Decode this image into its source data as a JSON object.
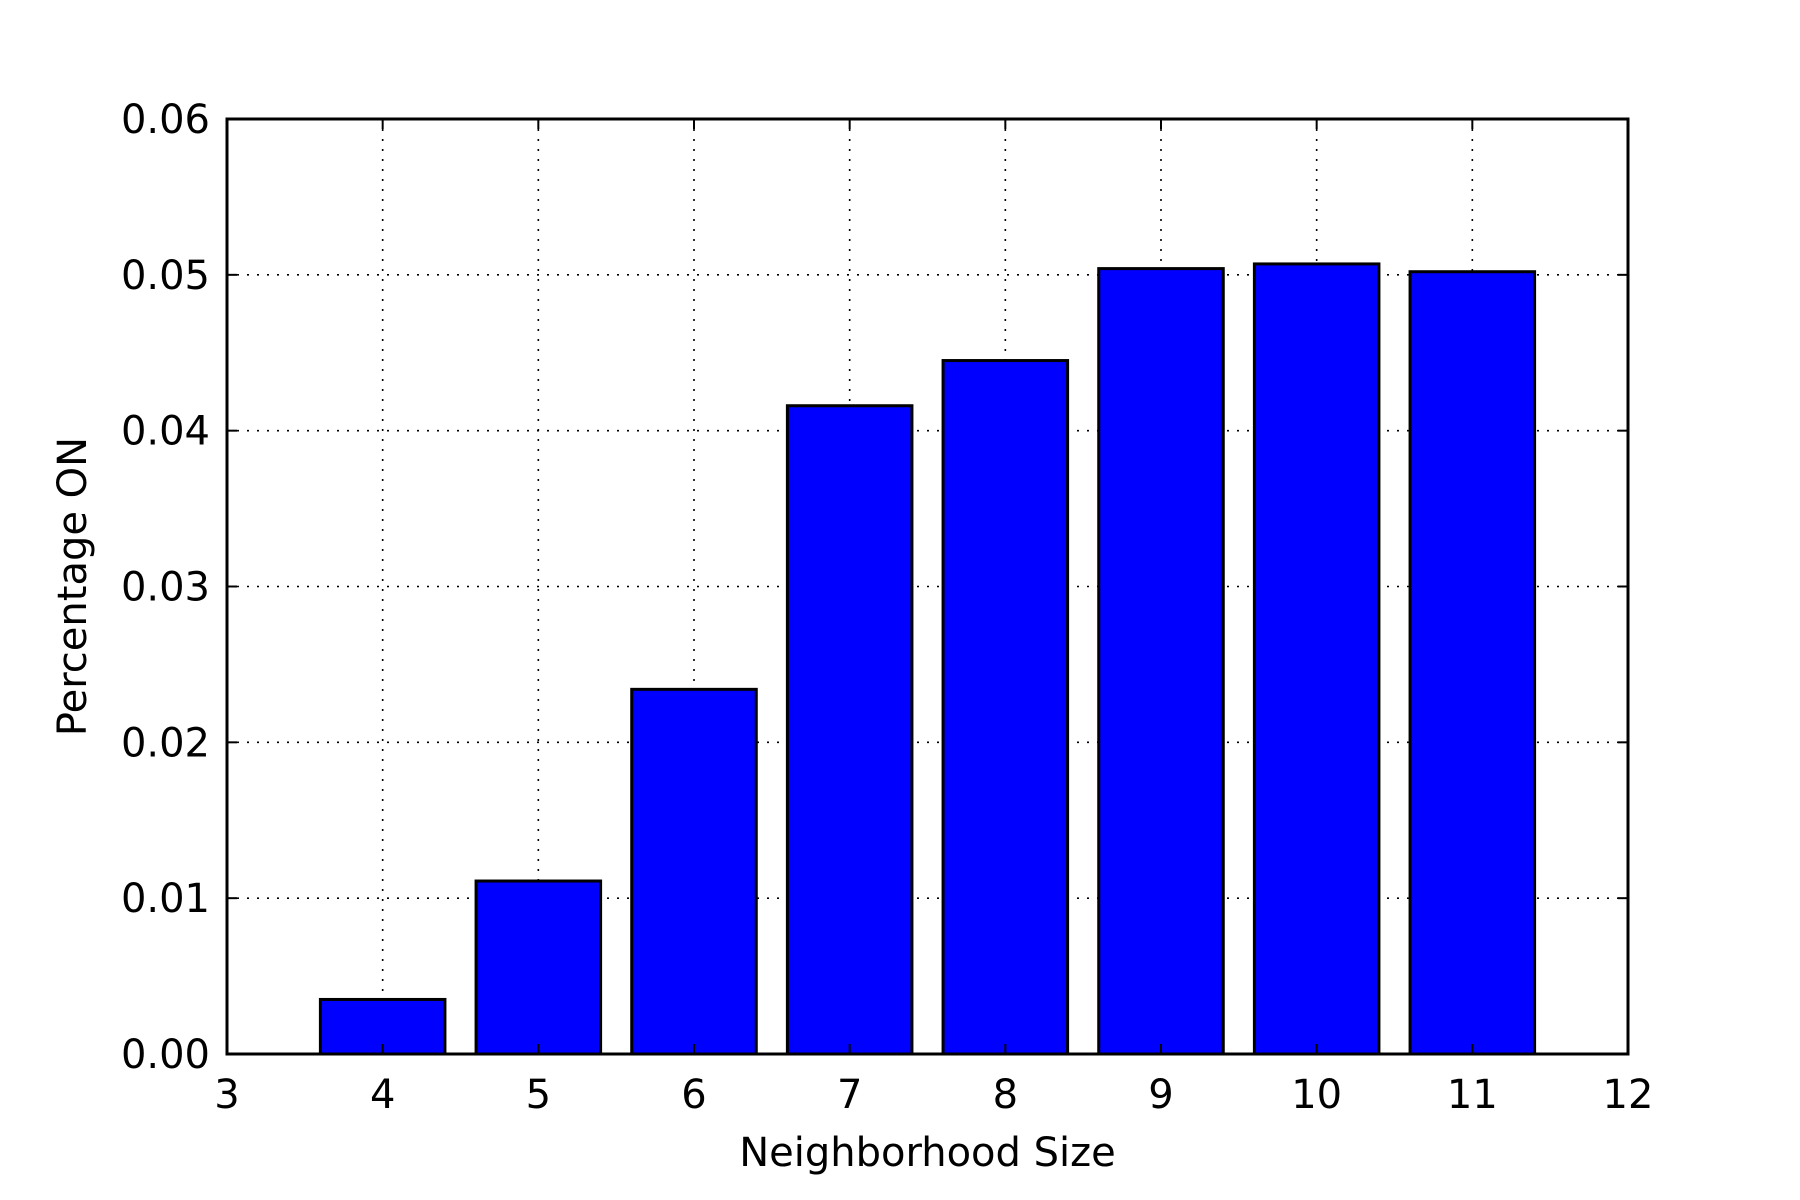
{
  "chart_data": {
    "type": "bar",
    "title": "",
    "xlabel": "Neighborhood Size",
    "ylabel": "Percentage ON",
    "x": [
      4,
      5,
      6,
      7,
      8,
      9,
      10,
      11
    ],
    "values": [
      0.0035,
      0.0111,
      0.0234,
      0.0416,
      0.0445,
      0.0504,
      0.0507,
      0.0502
    ],
    "xlim": [
      3,
      12
    ],
    "ylim": [
      0,
      0.06
    ],
    "xticks": [
      "3",
      "4",
      "5",
      "6",
      "7",
      "8",
      "9",
      "10",
      "11",
      "12"
    ],
    "yticks": [
      "0.00",
      "0.01",
      "0.02",
      "0.03",
      "0.04",
      "0.05",
      "0.06"
    ],
    "grid": true,
    "bar_color": "#0000ff",
    "edge_color": "#000000"
  }
}
